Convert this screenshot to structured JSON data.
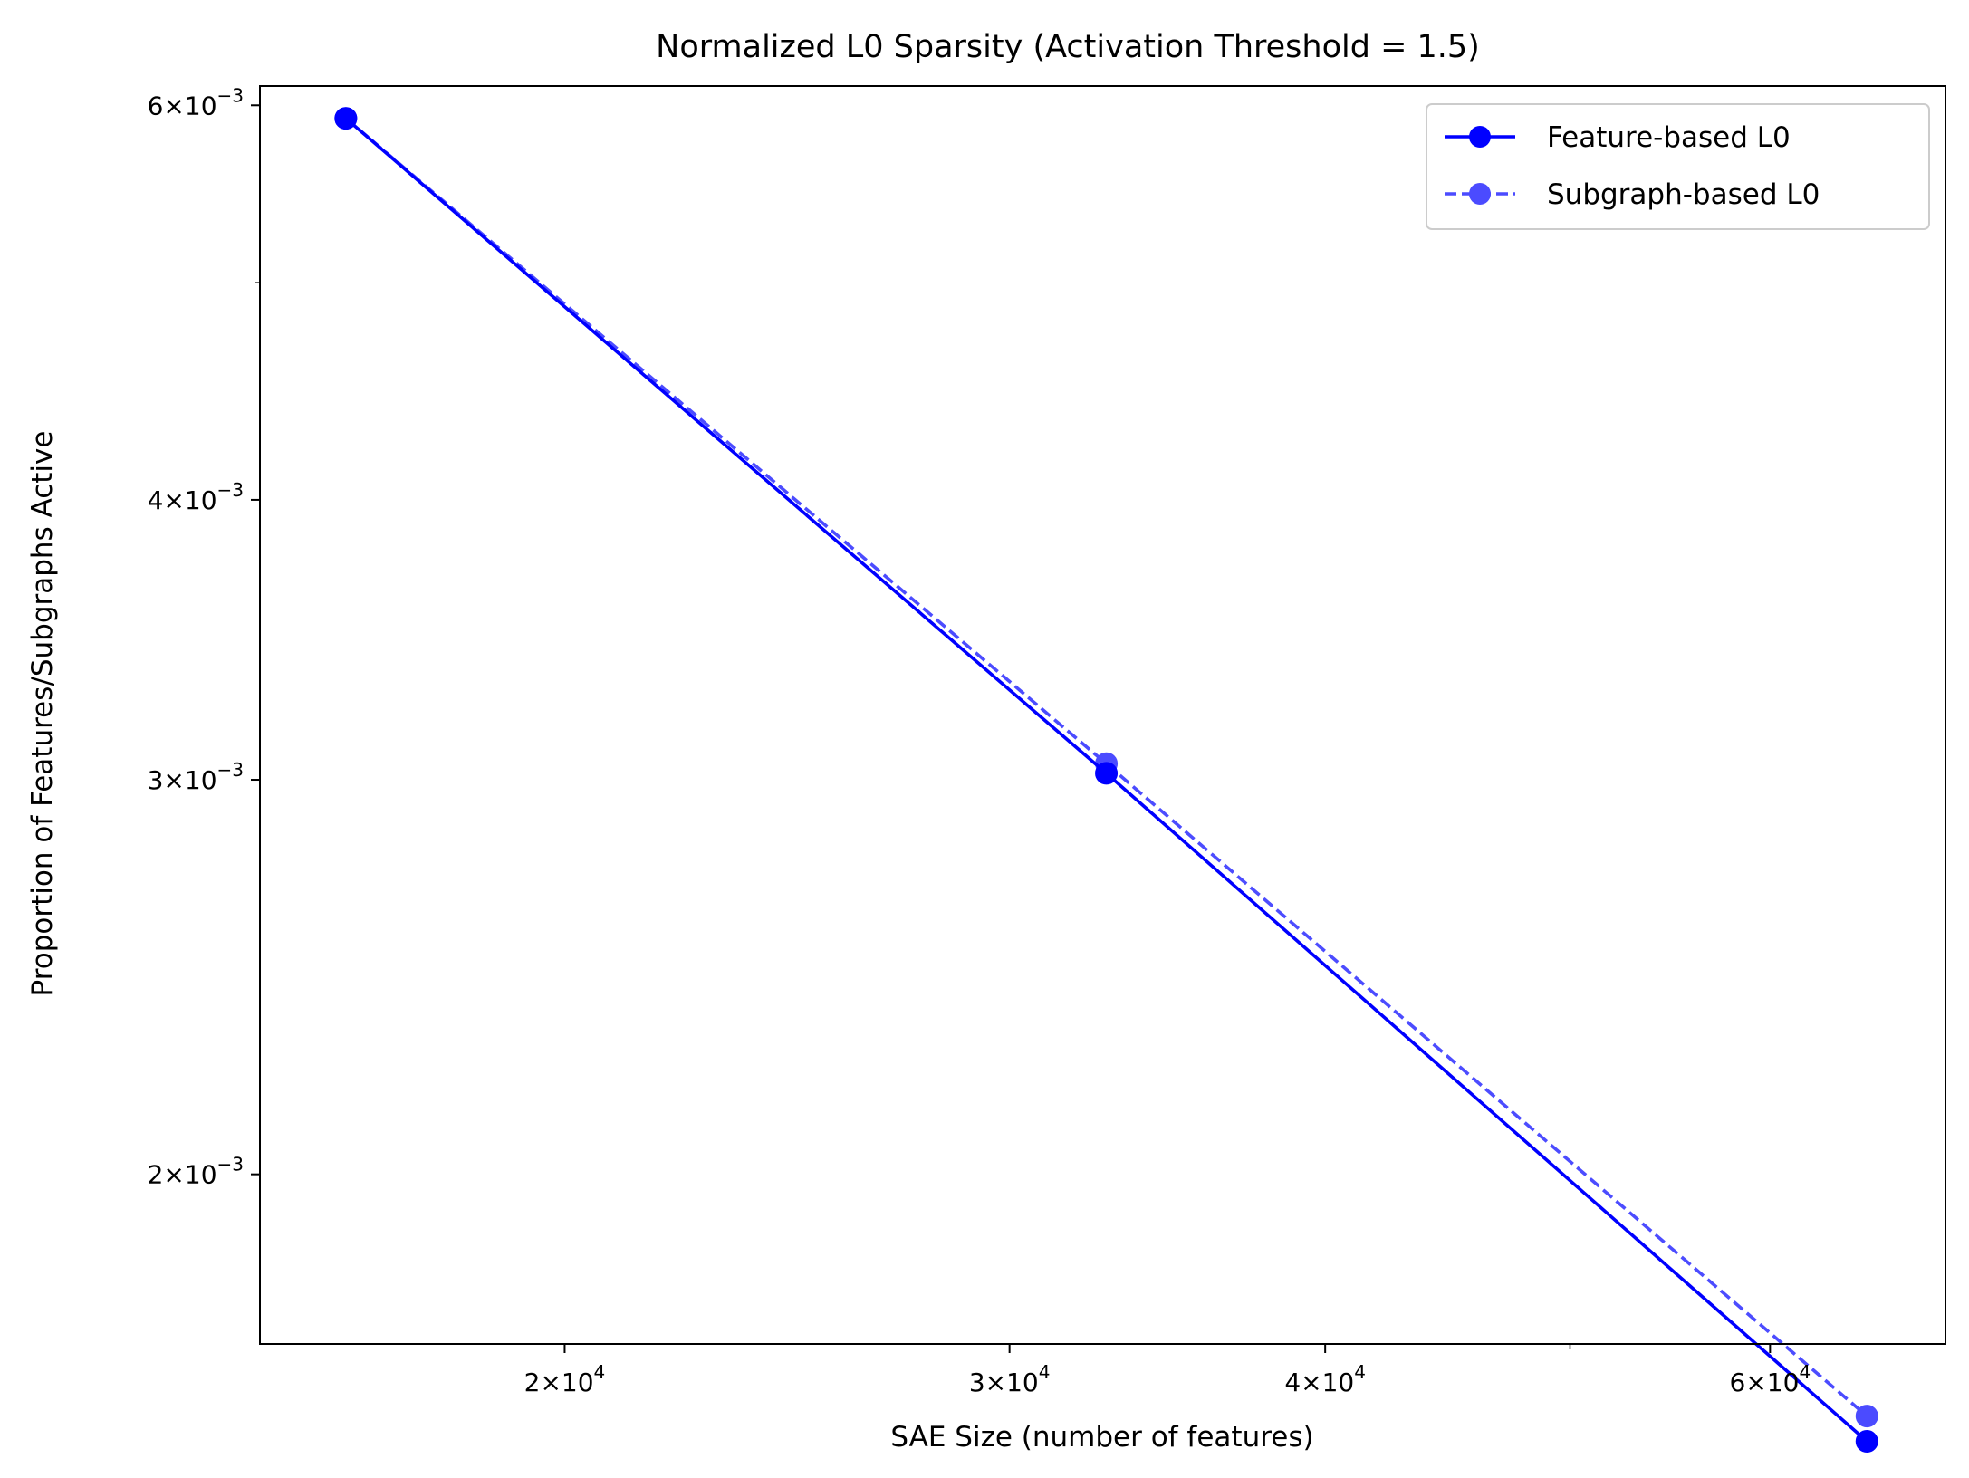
{
  "chart_data": {
    "type": "line",
    "title": "Normalized L0 Sparsity (Activation Threshold = 1.5)",
    "xlabel": "SAE Size (number of features)",
    "ylabel": "Proportion of Features/Subgraphs Active",
    "xscale": "log",
    "yscale": "log",
    "xlim": [
      15150,
      70400
    ],
    "ylim": [
      0.00168,
      0.00612
    ],
    "x": [
      16384,
      32768,
      65536
    ],
    "x_major_ticks": [
      {
        "value": 20000,
        "mantissa": "2",
        "exp": "4"
      },
      {
        "value": 30000,
        "mantissa": "3",
        "exp": "4"
      },
      {
        "value": 40000,
        "mantissa": "4",
        "exp": "4"
      },
      {
        "value": 60000,
        "mantissa": "6",
        "exp": "4"
      }
    ],
    "x_minor_ticks": [
      50000
    ],
    "y_major_ticks": [
      {
        "value": 0.002,
        "mantissa": "2",
        "exp": "−3"
      },
      {
        "value": 0.003,
        "mantissa": "3",
        "exp": "−3"
      },
      {
        "value": 0.004,
        "mantissa": "4",
        "exp": "−3"
      },
      {
        "value": 0.006,
        "mantissa": "6",
        "exp": "−3"
      }
    ],
    "y_minor_ticks": [
      0.005
    ],
    "grid": false,
    "legend_position": "top-right",
    "series": [
      {
        "name": "Feature-based L0",
        "values": [
          0.00592,
          0.00302,
          0.00152
        ],
        "color": "#0000ff",
        "linestyle": "solid",
        "marker": "circle",
        "alpha": 1.0
      },
      {
        "name": "Subgraph-based L0",
        "values": [
          0.00592,
          0.00305,
          0.00156
        ],
        "color": "#0000ff",
        "linestyle": "dashed",
        "marker": "circle",
        "alpha": 0.7
      }
    ]
  }
}
